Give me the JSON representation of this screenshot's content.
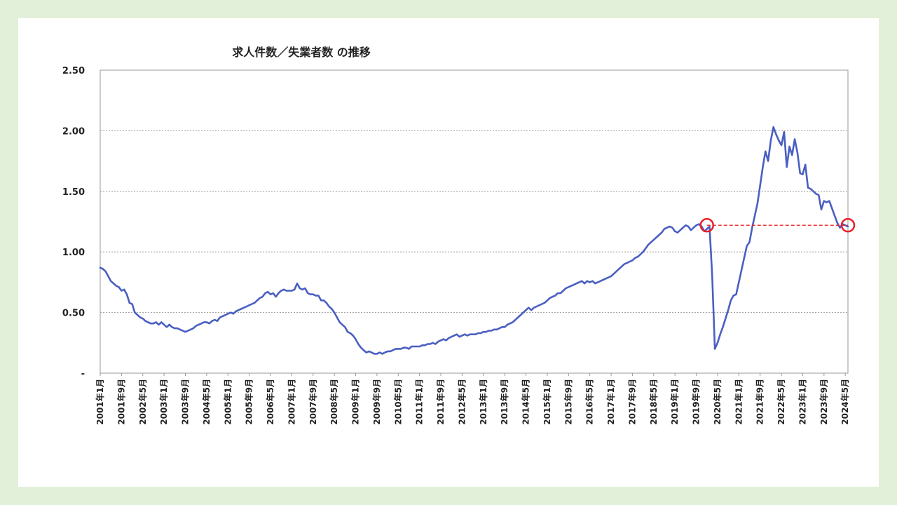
{
  "chart_data": {
    "type": "line",
    "title": "求人件数／失業者数 の推移",
    "xlabel": "",
    "ylabel": "",
    "ylim": [
      0,
      2.5
    ],
    "y_ticks": [
      {
        "value": 0,
        "label": "-"
      },
      {
        "value": 0.5,
        "label": "0.50"
      },
      {
        "value": 1.0,
        "label": "1.00"
      },
      {
        "value": 1.5,
        "label": "1.50"
      },
      {
        "value": 2.0,
        "label": "2.00"
      },
      {
        "value": 2.5,
        "label": "2.50"
      }
    ],
    "grid": "horizontal dotted",
    "x_start": "2001-01",
    "x_end": "2024-06",
    "x_tick_labels": [
      "2001年1月",
      "2001年9月",
      "2002年5月",
      "2003年1月",
      "2003年9月",
      "2004年5月",
      "2005年1月",
      "2005年9月",
      "2006年5月",
      "2007年1月",
      "2007年9月",
      "2008年5月",
      "2009年1月",
      "2009年9月",
      "2010年5月",
      "2011年1月",
      "2011年9月",
      "2012年5月",
      "2013年1月",
      "2013年9月",
      "2014年5月",
      "2015年1月",
      "2015年9月",
      "2016年5月",
      "2017年1月",
      "2017年9月",
      "2018年5月",
      "2019年1月",
      "2019年9月",
      "2020年5月",
      "2021年1月",
      "2021年9月",
      "2022年5月",
      "2023年1月",
      "2023年9月",
      "2024年5月"
    ],
    "series": [
      {
        "color": "#4a5fc1",
        "points": [
          [
            "2001-01",
            0.87
          ],
          [
            "2001-02",
            0.86
          ],
          [
            "2001-03",
            0.84
          ],
          [
            "2001-04",
            0.8
          ],
          [
            "2001-05",
            0.76
          ],
          [
            "2001-06",
            0.74
          ],
          [
            "2001-07",
            0.72
          ],
          [
            "2001-08",
            0.71
          ],
          [
            "2001-09",
            0.68
          ],
          [
            "2001-10",
            0.69
          ],
          [
            "2001-11",
            0.65
          ],
          [
            "2001-12",
            0.58
          ],
          [
            "2002-01",
            0.57
          ],
          [
            "2002-02",
            0.5
          ],
          [
            "2002-03",
            0.48
          ],
          [
            "2002-04",
            0.46
          ],
          [
            "2002-05",
            0.45
          ],
          [
            "2002-06",
            0.43
          ],
          [
            "2002-07",
            0.42
          ],
          [
            "2002-08",
            0.41
          ],
          [
            "2002-09",
            0.41
          ],
          [
            "2002-10",
            0.42
          ],
          [
            "2002-11",
            0.4
          ],
          [
            "2002-12",
            0.42
          ],
          [
            "2003-01",
            0.4
          ],
          [
            "2003-02",
            0.38
          ],
          [
            "2003-03",
            0.4
          ],
          [
            "2003-04",
            0.38
          ],
          [
            "2003-05",
            0.37
          ],
          [
            "2003-06",
            0.37
          ],
          [
            "2003-07",
            0.36
          ],
          [
            "2003-08",
            0.35
          ],
          [
            "2003-09",
            0.34
          ],
          [
            "2003-10",
            0.35
          ],
          [
            "2003-11",
            0.36
          ],
          [
            "2003-12",
            0.37
          ],
          [
            "2004-01",
            0.39
          ],
          [
            "2004-02",
            0.4
          ],
          [
            "2004-03",
            0.41
          ],
          [
            "2004-04",
            0.42
          ],
          [
            "2004-05",
            0.42
          ],
          [
            "2004-06",
            0.41
          ],
          [
            "2004-07",
            0.43
          ],
          [
            "2004-08",
            0.44
          ],
          [
            "2004-09",
            0.43
          ],
          [
            "2004-10",
            0.46
          ],
          [
            "2004-11",
            0.47
          ],
          [
            "2004-12",
            0.48
          ],
          [
            "2005-01",
            0.49
          ],
          [
            "2005-02",
            0.5
          ],
          [
            "2005-03",
            0.49
          ],
          [
            "2005-04",
            0.51
          ],
          [
            "2005-05",
            0.52
          ],
          [
            "2005-06",
            0.53
          ],
          [
            "2005-07",
            0.54
          ],
          [
            "2005-08",
            0.55
          ],
          [
            "2005-09",
            0.56
          ],
          [
            "2005-10",
            0.57
          ],
          [
            "2005-11",
            0.58
          ],
          [
            "2005-12",
            0.6
          ],
          [
            "2006-01",
            0.62
          ],
          [
            "2006-02",
            0.63
          ],
          [
            "2006-03",
            0.66
          ],
          [
            "2006-04",
            0.67
          ],
          [
            "2006-05",
            0.65
          ],
          [
            "2006-06",
            0.66
          ],
          [
            "2006-07",
            0.63
          ],
          [
            "2006-08",
            0.66
          ],
          [
            "2006-09",
            0.68
          ],
          [
            "2006-10",
            0.69
          ],
          [
            "2006-11",
            0.68
          ],
          [
            "2006-12",
            0.68
          ],
          [
            "2007-01",
            0.68
          ],
          [
            "2007-02",
            0.69
          ],
          [
            "2007-03",
            0.74
          ],
          [
            "2007-04",
            0.7
          ],
          [
            "2007-05",
            0.69
          ],
          [
            "2007-06",
            0.7
          ],
          [
            "2007-07",
            0.66
          ],
          [
            "2007-08",
            0.65
          ],
          [
            "2007-09",
            0.65
          ],
          [
            "2007-10",
            0.64
          ],
          [
            "2007-11",
            0.64
          ],
          [
            "2007-12",
            0.6
          ],
          [
            "2008-01",
            0.6
          ],
          [
            "2008-02",
            0.58
          ],
          [
            "2008-03",
            0.55
          ],
          [
            "2008-04",
            0.53
          ],
          [
            "2008-05",
            0.5
          ],
          [
            "2008-06",
            0.46
          ],
          [
            "2008-07",
            0.42
          ],
          [
            "2008-08",
            0.4
          ],
          [
            "2008-09",
            0.38
          ],
          [
            "2008-10",
            0.34
          ],
          [
            "2008-11",
            0.33
          ],
          [
            "2008-12",
            0.31
          ],
          [
            "2009-01",
            0.28
          ],
          [
            "2009-02",
            0.24
          ],
          [
            "2009-03",
            0.21
          ],
          [
            "2009-04",
            0.19
          ],
          [
            "2009-05",
            0.17
          ],
          [
            "2009-06",
            0.18
          ],
          [
            "2009-07",
            0.17
          ],
          [
            "2009-08",
            0.16
          ],
          [
            "2009-09",
            0.16
          ],
          [
            "2009-10",
            0.17
          ],
          [
            "2009-11",
            0.16
          ],
          [
            "2009-12",
            0.17
          ],
          [
            "2010-01",
            0.18
          ],
          [
            "2010-02",
            0.18
          ],
          [
            "2010-03",
            0.19
          ],
          [
            "2010-04",
            0.2
          ],
          [
            "2010-05",
            0.2
          ],
          [
            "2010-06",
            0.2
          ],
          [
            "2010-07",
            0.21
          ],
          [
            "2010-08",
            0.21
          ],
          [
            "2010-09",
            0.2
          ],
          [
            "2010-10",
            0.22
          ],
          [
            "2010-11",
            0.22
          ],
          [
            "2010-12",
            0.22
          ],
          [
            "2011-01",
            0.22
          ],
          [
            "2011-02",
            0.23
          ],
          [
            "2011-03",
            0.23
          ],
          [
            "2011-04",
            0.24
          ],
          [
            "2011-05",
            0.24
          ],
          [
            "2011-06",
            0.25
          ],
          [
            "2011-07",
            0.24
          ],
          [
            "2011-08",
            0.26
          ],
          [
            "2011-09",
            0.27
          ],
          [
            "2011-10",
            0.28
          ],
          [
            "2011-11",
            0.27
          ],
          [
            "2011-12",
            0.29
          ],
          [
            "2012-01",
            0.3
          ],
          [
            "2012-02",
            0.31
          ],
          [
            "2012-03",
            0.32
          ],
          [
            "2012-04",
            0.3
          ],
          [
            "2012-05",
            0.31
          ],
          [
            "2012-06",
            0.32
          ],
          [
            "2012-07",
            0.31
          ],
          [
            "2012-08",
            0.32
          ],
          [
            "2012-09",
            0.32
          ],
          [
            "2012-10",
            0.32
          ],
          [
            "2012-11",
            0.33
          ],
          [
            "2012-12",
            0.33
          ],
          [
            "2013-01",
            0.34
          ],
          [
            "2013-02",
            0.34
          ],
          [
            "2013-03",
            0.35
          ],
          [
            "2013-04",
            0.35
          ],
          [
            "2013-05",
            0.36
          ],
          [
            "2013-06",
            0.36
          ],
          [
            "2013-07",
            0.37
          ],
          [
            "2013-08",
            0.38
          ],
          [
            "2013-09",
            0.38
          ],
          [
            "2013-10",
            0.4
          ],
          [
            "2013-11",
            0.41
          ],
          [
            "2013-12",
            0.42
          ],
          [
            "2014-01",
            0.44
          ],
          [
            "2014-02",
            0.46
          ],
          [
            "2014-03",
            0.48
          ],
          [
            "2014-04",
            0.5
          ],
          [
            "2014-05",
            0.52
          ],
          [
            "2014-06",
            0.54
          ],
          [
            "2014-07",
            0.52
          ],
          [
            "2014-08",
            0.54
          ],
          [
            "2014-09",
            0.55
          ],
          [
            "2014-10",
            0.56
          ],
          [
            "2014-11",
            0.57
          ],
          [
            "2014-12",
            0.58
          ],
          [
            "2015-01",
            0.6
          ],
          [
            "2015-02",
            0.62
          ],
          [
            "2015-03",
            0.63
          ],
          [
            "2015-04",
            0.64
          ],
          [
            "2015-05",
            0.66
          ],
          [
            "2015-06",
            0.66
          ],
          [
            "2015-07",
            0.68
          ],
          [
            "2015-08",
            0.7
          ],
          [
            "2015-09",
            0.71
          ],
          [
            "2015-10",
            0.72
          ],
          [
            "2015-11",
            0.73
          ],
          [
            "2015-12",
            0.74
          ],
          [
            "2016-01",
            0.75
          ],
          [
            "2016-02",
            0.76
          ],
          [
            "2016-03",
            0.74
          ],
          [
            "2016-04",
            0.76
          ],
          [
            "2016-05",
            0.75
          ],
          [
            "2016-06",
            0.76
          ],
          [
            "2016-07",
            0.74
          ],
          [
            "2016-08",
            0.75
          ],
          [
            "2016-09",
            0.76
          ],
          [
            "2016-10",
            0.77
          ],
          [
            "2016-11",
            0.78
          ],
          [
            "2016-12",
            0.79
          ],
          [
            "2017-01",
            0.8
          ],
          [
            "2017-02",
            0.82
          ],
          [
            "2017-03",
            0.84
          ],
          [
            "2017-04",
            0.86
          ],
          [
            "2017-05",
            0.88
          ],
          [
            "2017-06",
            0.9
          ],
          [
            "2017-07",
            0.91
          ],
          [
            "2017-08",
            0.92
          ],
          [
            "2017-09",
            0.93
          ],
          [
            "2017-10",
            0.95
          ],
          [
            "2017-11",
            0.96
          ],
          [
            "2017-12",
            0.98
          ],
          [
            "2018-01",
            1.0
          ],
          [
            "2018-02",
            1.03
          ],
          [
            "2018-03",
            1.06
          ],
          [
            "2018-04",
            1.08
          ],
          [
            "2018-05",
            1.1
          ],
          [
            "2018-06",
            1.12
          ],
          [
            "2018-07",
            1.14
          ],
          [
            "2018-08",
            1.16
          ],
          [
            "2018-09",
            1.19
          ],
          [
            "2018-10",
            1.2
          ],
          [
            "2018-11",
            1.21
          ],
          [
            "2018-12",
            1.2
          ],
          [
            "2019-01",
            1.17
          ],
          [
            "2019-02",
            1.16
          ],
          [
            "2019-03",
            1.18
          ],
          [
            "2019-04",
            1.2
          ],
          [
            "2019-05",
            1.22
          ],
          [
            "2019-06",
            1.21
          ],
          [
            "2019-07",
            1.18
          ],
          [
            "2019-08",
            1.2
          ],
          [
            "2019-09",
            1.22
          ],
          [
            "2019-10",
            1.23
          ],
          [
            "2019-11",
            1.21
          ],
          [
            "2019-12",
            1.17
          ],
          [
            "2020-01",
            1.19
          ],
          [
            "2020-02",
            1.21
          ],
          [
            "2020-03",
            0.8
          ],
          [
            "2020-04",
            0.2
          ],
          [
            "2020-05",
            0.25
          ],
          [
            "2020-06",
            0.32
          ],
          [
            "2020-07",
            0.38
          ],
          [
            "2020-08",
            0.45
          ],
          [
            "2020-09",
            0.52
          ],
          [
            "2020-10",
            0.6
          ],
          [
            "2020-11",
            0.64
          ],
          [
            "2020-12",
            0.65
          ],
          [
            "2021-01",
            0.75
          ],
          [
            "2021-02",
            0.85
          ],
          [
            "2021-03",
            0.95
          ],
          [
            "2021-04",
            1.05
          ],
          [
            "2021-05",
            1.08
          ],
          [
            "2021-06",
            1.2
          ],
          [
            "2021-07",
            1.3
          ],
          [
            "2021-08",
            1.4
          ],
          [
            "2021-09",
            1.55
          ],
          [
            "2021-10",
            1.7
          ],
          [
            "2021-11",
            1.83
          ],
          [
            "2021-12",
            1.75
          ],
          [
            "2022-01",
            1.92
          ],
          [
            "2022-02",
            2.03
          ],
          [
            "2022-03",
            1.97
          ],
          [
            "2022-04",
            1.92
          ],
          [
            "2022-05",
            1.88
          ],
          [
            "2022-06",
            1.99
          ],
          [
            "2022-07",
            1.7
          ],
          [
            "2022-08",
            1.87
          ],
          [
            "2022-09",
            1.8
          ],
          [
            "2022-10",
            1.93
          ],
          [
            "2022-11",
            1.82
          ],
          [
            "2022-12",
            1.65
          ],
          [
            "2023-01",
            1.64
          ],
          [
            "2023-02",
            1.72
          ],
          [
            "2023-03",
            1.53
          ],
          [
            "2023-04",
            1.52
          ],
          [
            "2023-05",
            1.5
          ],
          [
            "2023-06",
            1.48
          ],
          [
            "2023-07",
            1.47
          ],
          [
            "2023-08",
            1.35
          ],
          [
            "2023-09",
            1.42
          ],
          [
            "2023-10",
            1.41
          ],
          [
            "2023-11",
            1.42
          ],
          [
            "2023-12",
            1.36
          ],
          [
            "2024-01",
            1.3
          ],
          [
            "2024-02",
            1.24
          ],
          [
            "2024-03",
            1.2
          ],
          [
            "2024-04",
            1.23
          ],
          [
            "2024-05",
            1.22
          ],
          [
            "2024-06",
            1.21
          ]
        ]
      }
    ],
    "annotations": {
      "reference_value": 1.22,
      "reference_from": "2020-01",
      "reference_to": "2024-06",
      "line_style": "dashed",
      "color": "#e8202a"
    }
  }
}
